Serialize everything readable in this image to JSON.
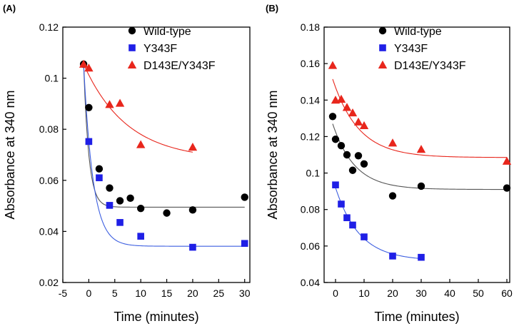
{
  "chart_data": [
    {
      "type": "scatter",
      "panel_label": "(A)",
      "xlabel": "Time (minutes)",
      "ylabel": "Absorbance at 340 nm",
      "xlim": [
        -5,
        31
      ],
      "ylim": [
        0.02,
        0.12
      ],
      "xticks": [
        -5,
        0,
        5,
        10,
        15,
        20,
        25,
        30
      ],
      "xtick_labels": [
        "-5",
        "0",
        "5",
        "10",
        "15",
        "20",
        "25",
        "30"
      ],
      "yticks": [
        0.02,
        0.04,
        0.06,
        0.08,
        0.1,
        0.12
      ],
      "ytick_labels": [
        "0.02",
        "0.04",
        "0.06",
        "0.08",
        "0.1",
        "0.12"
      ],
      "legend_position": "top-right",
      "series": [
        {
          "name": "Wild-type",
          "marker": "circle",
          "color": "#000000",
          "fit_color": "#555555",
          "x": [
            -1,
            0,
            2,
            4,
            6,
            8,
            10,
            15,
            20,
            30
          ],
          "y": [
            0.1055,
            0.0885,
            0.0645,
            0.057,
            0.052,
            0.053,
            0.049,
            0.0472,
            0.0484,
            0.0534
          ],
          "fit": {
            "x0": -1,
            "plateau": 0.0495,
            "amplitude": 0.056,
            "k": 1.0,
            "x_end": 30
          }
        },
        {
          "name": "Y343F",
          "marker": "square",
          "color": "#1f1fe6",
          "fit_color": "#3d5fe0",
          "x": [
            0,
            2,
            4,
            6,
            10,
            20,
            30
          ],
          "y": [
            0.0752,
            0.061,
            0.0502,
            0.0435,
            0.0381,
            0.0338,
            0.0353
          ],
          "fit": {
            "x0": -1,
            "plateau": 0.0342,
            "amplitude": 0.0713,
            "k": 0.55,
            "x_end": 30
          }
        },
        {
          "name": "D143E/Y343F",
          "marker": "triangle",
          "color": "#e8261c",
          "fit_color": "#e8261c",
          "x": [
            -1,
            0,
            4,
            6,
            10,
            20
          ],
          "y": [
            0.1055,
            0.104,
            0.0897,
            0.0902,
            0.074,
            0.073
          ],
          "fit": {
            "x0": -1,
            "plateau": 0.068,
            "amplitude": 0.0375,
            "k": 0.12,
            "x_end": 20
          }
        }
      ]
    },
    {
      "type": "scatter",
      "panel_label": "(B)",
      "xlabel": "Time (minutes)",
      "ylabel": "Absorbance at 340 nm",
      "xlim": [
        -4,
        61
      ],
      "ylim": [
        0.04,
        0.18
      ],
      "xticks": [
        0,
        10,
        20,
        30,
        40,
        50,
        60
      ],
      "xtick_labels": [
        "0",
        "10",
        "20",
        "30",
        "40",
        "50",
        "60"
      ],
      "yticks": [
        0.04,
        0.06,
        0.08,
        0.1,
        0.12,
        0.14,
        0.16,
        0.18
      ],
      "ytick_labels": [
        "0.04",
        "0.06",
        "0.08",
        "0.1",
        "0.12",
        "0.14",
        "0.16",
        "0.18"
      ],
      "legend_position": "top-right",
      "series": [
        {
          "name": "Wild-type",
          "marker": "circle",
          "color": "#000000",
          "fit_color": "#555555",
          "x": [
            -1,
            0,
            2,
            4,
            6,
            8,
            10,
            20,
            30,
            60
          ],
          "y": [
            0.131,
            0.1185,
            0.115,
            0.11,
            0.1015,
            0.1095,
            0.105,
            0.0875,
            0.0928,
            0.0918
          ],
          "fit": {
            "x0": -1,
            "plateau": 0.091,
            "amplitude": 0.036,
            "k": 0.13,
            "x_end": 60
          }
        },
        {
          "name": "Y343F",
          "marker": "square",
          "color": "#1f1fe6",
          "fit_color": "#3d5fe0",
          "x": [
            0,
            2,
            4,
            6,
            10,
            20,
            30
          ],
          "y": [
            0.0935,
            0.083,
            0.0755,
            0.0715,
            0.065,
            0.0545,
            0.0538
          ],
          "fit": {
            "x0": 0,
            "plateau": 0.052,
            "amplitude": 0.04,
            "k": 0.12,
            "x_end": 30
          }
        },
        {
          "name": "D143E/Y343F",
          "marker": "triangle",
          "color": "#e8261c",
          "fit_color": "#e8261c",
          "x": [
            -1,
            0,
            2,
            4,
            6,
            8,
            10,
            20,
            30,
            60
          ],
          "y": [
            0.159,
            0.14,
            0.1405,
            0.136,
            0.133,
            0.128,
            0.126,
            0.1165,
            0.113,
            0.1065
          ],
          "fit": {
            "x0": -1,
            "plateau": 0.1085,
            "amplitude": 0.043,
            "k": 0.11,
            "x_end": 60
          }
        }
      ]
    }
  ]
}
